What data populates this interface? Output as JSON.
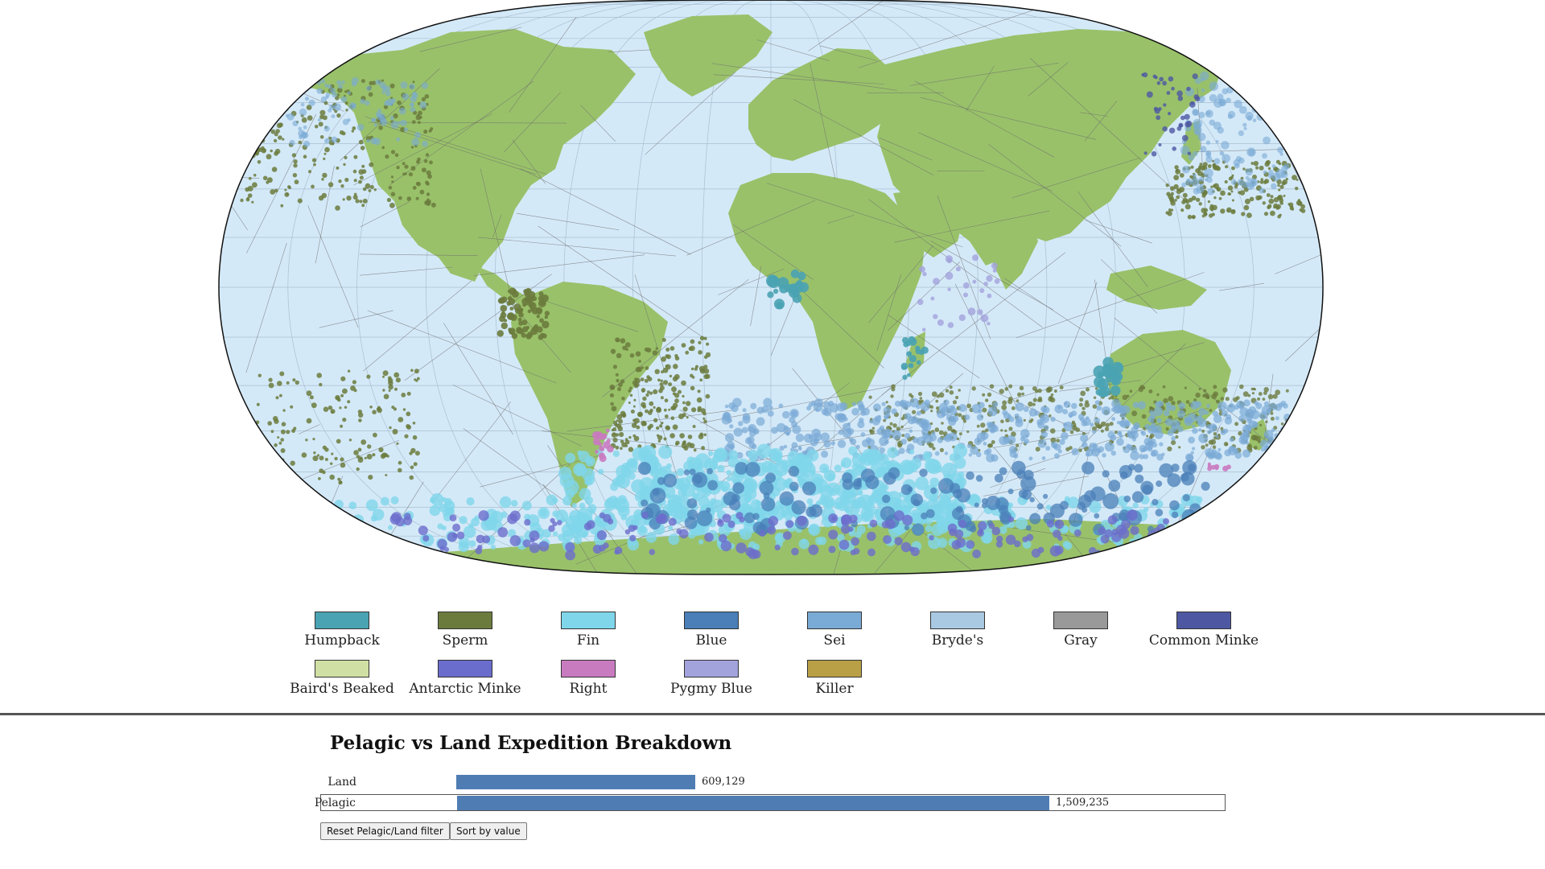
{
  "colors": {
    "ocean": "#d4e9f8",
    "land": "#99c16a",
    "graticule": "#a9bfd0",
    "track": "#6a6a6a",
    "bar": "#4f7db3"
  },
  "legend": {
    "items": [
      {
        "label": "Humpback",
        "color": "#4aa3b2"
      },
      {
        "label": "Sperm",
        "color": "#6b7b3d"
      },
      {
        "label": "Fin",
        "color": "#7fd6ea"
      },
      {
        "label": "Blue",
        "color": "#4a7fb8"
      },
      {
        "label": "Sei",
        "color": "#7aaad6"
      },
      {
        "label": "Bryde's",
        "color": "#a9c9e2"
      },
      {
        "label": "Gray",
        "color": "#999999"
      },
      {
        "label": "Common Minke",
        "color": "#4e58a2"
      },
      {
        "label": "Baird's Beaked",
        "color": "#d0e0a4"
      },
      {
        "label": "Antarctic Minke",
        "color": "#6b6dcc"
      },
      {
        "label": "Right",
        "color": "#c97bc0"
      },
      {
        "label": "Pygmy Blue",
        "color": "#a2a3dc"
      },
      {
        "label": "Killer",
        "color": "#b9a046"
      }
    ]
  },
  "breakdown": {
    "title": "Pelagic vs Land Expedition Breakdown",
    "bars": [
      {
        "label": "Land",
        "value": 609129,
        "display": "609,129",
        "selected": false
      },
      {
        "label": "Pelagic",
        "value": 1509235,
        "display": "1,509,235",
        "selected": true
      }
    ],
    "max_value": 1509235,
    "reset_label": "Reset Pelagic/Land filter",
    "sort_label": "Sort by value"
  }
}
